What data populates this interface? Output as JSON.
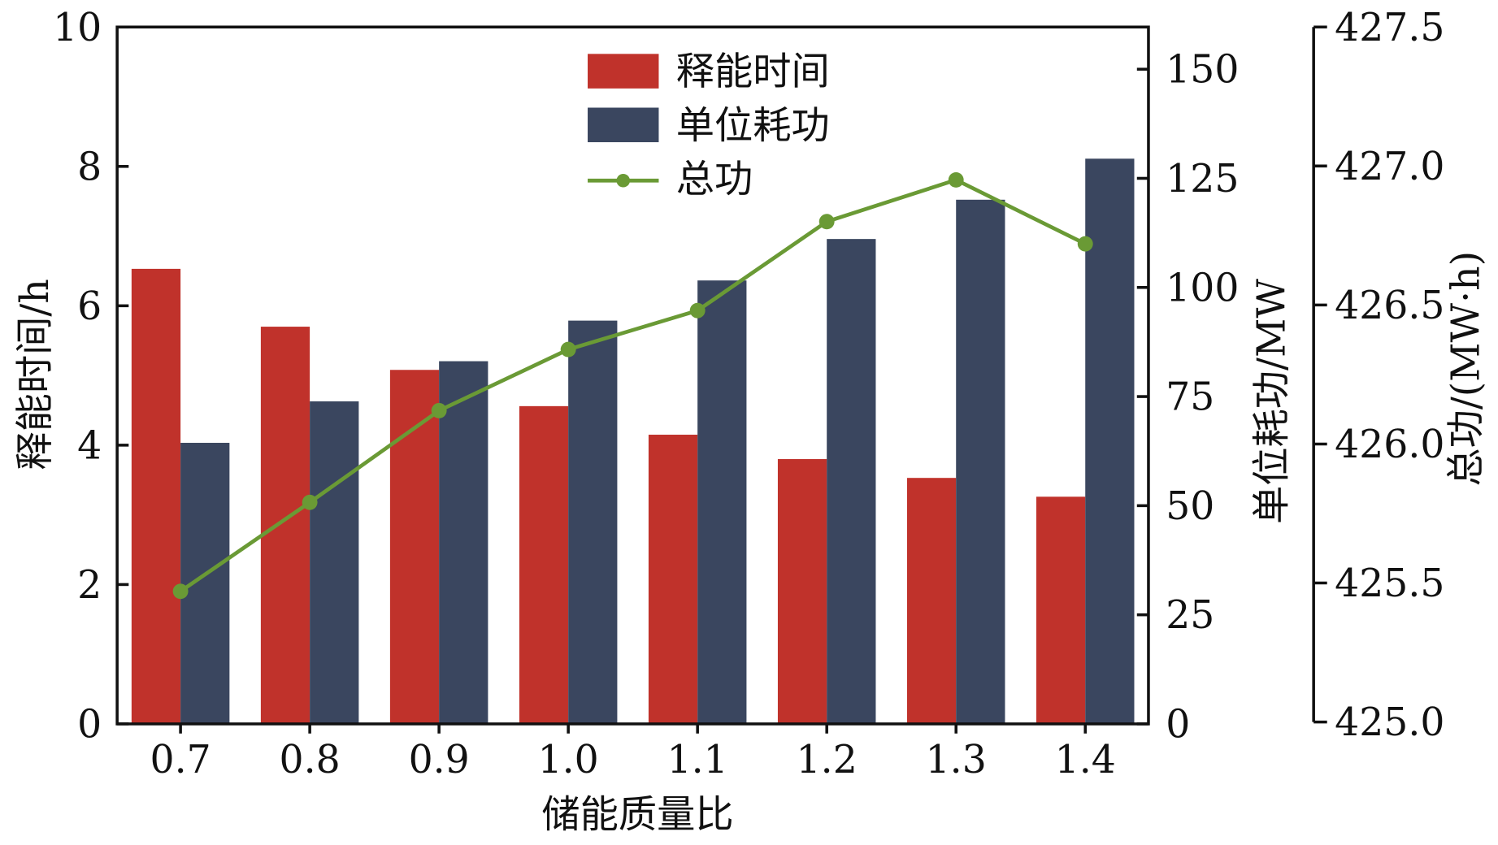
{
  "chart_data": {
    "type": "bar",
    "categories": [
      "0.7",
      "0.8",
      "0.9",
      "1.0",
      "1.1",
      "1.2",
      "1.3",
      "1.4"
    ],
    "xlabel": "储能质量比",
    "series": [
      {
        "name": "释能时间",
        "type": "bar",
        "axis": "left",
        "color": "#c0322b",
        "values": [
          6.53,
          5.7,
          5.08,
          4.56,
          4.15,
          3.8,
          3.53,
          3.26
        ]
      },
      {
        "name": "单位耗功",
        "type": "bar",
        "axis": "middle",
        "color": "#3a465f",
        "values": [
          64.4,
          73.9,
          83.1,
          92.4,
          101.6,
          111.1,
          120.1,
          129.5
        ]
      },
      {
        "name": "总功",
        "type": "line",
        "axis": "right",
        "color": "#6a9a35",
        "values": [
          425.47,
          425.79,
          426.12,
          426.34,
          426.48,
          426.8,
          426.95,
          426.72
        ]
      }
    ],
    "axes": {
      "left": {
        "label": "释能时间/h",
        "ylim": [
          0,
          10
        ],
        "ticks": [
          "0",
          "2",
          "4",
          "6",
          "8",
          "10"
        ]
      },
      "middle": {
        "label": "单位耗功/MW",
        "ylim": [
          0,
          160
        ],
        "ticks": [
          "0",
          "25",
          "50",
          "75",
          "100",
          "125",
          "150"
        ]
      },
      "right": {
        "label": "总功/(MW·h)",
        "ylim": [
          425.0,
          427.5
        ],
        "ticks": [
          "425.0",
          "425.5",
          "426.0",
          "426.5",
          "427.0",
          "427.5"
        ]
      }
    },
    "legend": {
      "placement": "top-center",
      "entries": [
        "释能时间",
        "单位耗功",
        "总功"
      ]
    },
    "grid": false
  }
}
